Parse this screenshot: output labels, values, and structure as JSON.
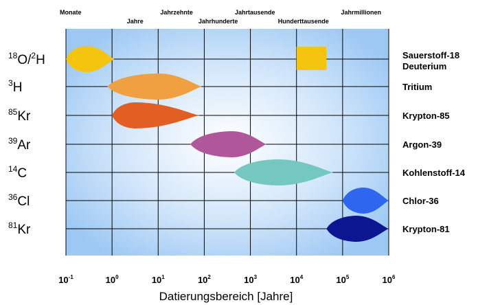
{
  "chart_data": {
    "type": "range",
    "xlabel": "Datierungsbereich [Jahre]",
    "x_scale": "log10",
    "xlim_log10": [
      -1,
      6
    ],
    "ticks": [
      {
        "base": "10",
        "exp": "-1"
      },
      {
        "base": "10",
        "exp": "0"
      },
      {
        "base": "10",
        "exp": "1"
      },
      {
        "base": "10",
        "exp": "2"
      },
      {
        "base": "10",
        "exp": "3"
      },
      {
        "base": "10",
        "exp": "4"
      },
      {
        "base": "10",
        "exp": "5"
      },
      {
        "base": "10",
        "exp": "6"
      }
    ],
    "timescales": [
      {
        "label": "Monate",
        "log10_years": -0.9,
        "row": "upper"
      },
      {
        "label": "Jahre",
        "log10_years": 0.5,
        "row": "lower"
      },
      {
        "label": "Jahrzehnte",
        "log10_years": 1.4,
        "row": "upper"
      },
      {
        "label": "Jahrhunderte",
        "log10_years": 2.3,
        "row": "lower"
      },
      {
        "label": "Jahrtausende",
        "log10_years": 3.1,
        "row": "upper"
      },
      {
        "label": "Hunderttausende",
        "log10_years": 4.15,
        "row": "lower"
      },
      {
        "label": "Jahrmillionen",
        "log10_years": 5.4,
        "row": "upper"
      }
    ],
    "background": "#9cc8f4",
    "series": [
      {
        "symbol": {
          "a": "18",
          "b": "O/",
          "c": "2",
          "d": "H"
        },
        "name": "Sauerstoff-18",
        "name2": "Deuterium",
        "color": "#f5c40f",
        "ranges": [
          {
            "shape": "lens",
            "x_min_log10": -1.0,
            "x_max_log10": 0.05,
            "peak_log10": -0.55
          },
          {
            "shape": "rect",
            "x_min_log10": 4.0,
            "x_max_log10": 4.65
          }
        ]
      },
      {
        "symbol": {
          "a": "3",
          "d": "H"
        },
        "name": "Tritium",
        "color": "#f0a040",
        "ranges": [
          {
            "shape": "lens",
            "x_min_log10": -0.1,
            "x_max_log10": 1.95,
            "peak_log10": 1.0
          }
        ]
      },
      {
        "symbol": {
          "a": "85",
          "d": "Kr"
        },
        "name": "Krypton-85",
        "color": "#e35e22",
        "ranges": [
          {
            "shape": "lens",
            "x_min_log10": 0.0,
            "x_max_log10": 1.9,
            "peak_log10": 0.5
          }
        ]
      },
      {
        "symbol": {
          "a": "39",
          "d": "Ar"
        },
        "name": "Argon-39",
        "color": "#b0569a",
        "ranges": [
          {
            "shape": "lens",
            "x_min_log10": 1.7,
            "x_max_log10": 3.35,
            "peak_log10": 2.6
          }
        ]
      },
      {
        "symbol": {
          "a": "14",
          "d": "C"
        },
        "name": "Kohlenstoff-14",
        "color": "#74c8c0",
        "ranges": [
          {
            "shape": "lens",
            "x_min_log10": 2.65,
            "x_max_log10": 4.8,
            "peak_log10": 3.6
          }
        ]
      },
      {
        "symbol": {
          "a": "36",
          "d": "Cl"
        },
        "name": "Chlor-36",
        "color": "#2f66f0",
        "ranges": [
          {
            "shape": "lens",
            "x_min_log10": 5.0,
            "x_max_log10": 6.0,
            "peak_log10": 5.45
          }
        ]
      },
      {
        "symbol": {
          "a": "81",
          "d": "Kr"
        },
        "name": "Krypton-81",
        "color": "#0c1690",
        "ranges": [
          {
            "shape": "lens",
            "x_min_log10": 4.65,
            "x_max_log10": 6.0,
            "peak_log10": 5.3
          }
        ]
      }
    ]
  }
}
